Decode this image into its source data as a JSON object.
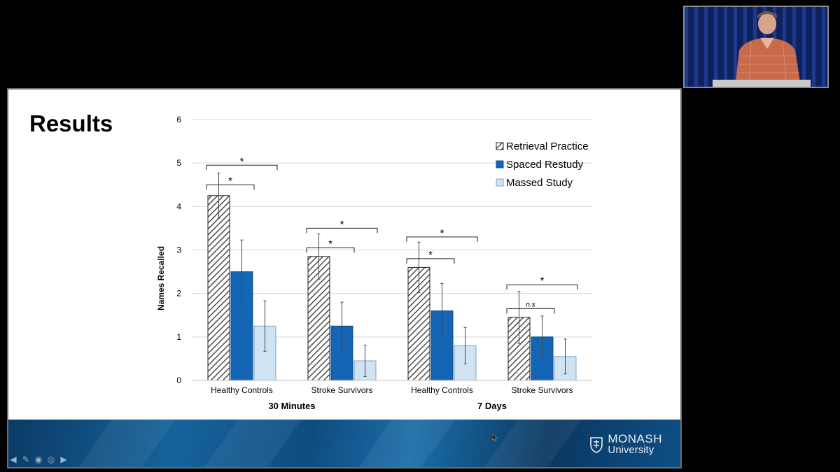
{
  "slide": {
    "title": "Results",
    "logo": {
      "line1": "MONASH",
      "line2": "University"
    }
  },
  "colors": {
    "retrieval_hatch": "#333333",
    "spaced": "#1565b5",
    "massed": "#cfe3f2",
    "grid": "#d9d9d9",
    "footer": "#0e4c80"
  },
  "chart_data": {
    "type": "bar",
    "ylabel": "Names Recalled",
    "ylim": [
      0,
      6
    ],
    "yticks": [
      0,
      1,
      2,
      3,
      4,
      5,
      6
    ],
    "grid": true,
    "legend_position": "top-right",
    "categories": [
      "Healthy Controls",
      "Stroke Survivors",
      "Healthy Controls",
      "Stroke Survivors"
    ],
    "groups": [
      {
        "label": "30 Minutes",
        "categories": [
          0,
          1
        ]
      },
      {
        "label": "7 Days",
        "categories": [
          2,
          3
        ]
      }
    ],
    "series": [
      {
        "name": "Retrieval Practice",
        "values": [
          4.25,
          2.85,
          2.6,
          1.45
        ],
        "errors": [
          0.52,
          0.52,
          0.58,
          0.6
        ]
      },
      {
        "name": "Spaced Restudy",
        "values": [
          2.5,
          1.25,
          1.6,
          1.0
        ],
        "errors": [
          0.73,
          0.55,
          0.63,
          0.48
        ]
      },
      {
        "name": "Massed Study",
        "values": [
          1.25,
          0.45,
          0.8,
          0.55
        ],
        "errors": [
          0.58,
          0.36,
          0.42,
          0.4
        ]
      }
    ],
    "annotations": [
      {
        "category": 0,
        "from_series": 0,
        "to_series": 2,
        "y": 4.95,
        "label": "*"
      },
      {
        "category": 0,
        "from_series": 0,
        "to_series": 1,
        "y": 4.5,
        "label": "*"
      },
      {
        "category": 1,
        "from_series": 0,
        "to_series": 2,
        "y": 3.5,
        "label": "*"
      },
      {
        "category": 1,
        "from_series": 0,
        "to_series": 1,
        "y": 3.05,
        "label": "*"
      },
      {
        "category": 2,
        "from_series": 0,
        "to_series": 2,
        "y": 3.3,
        "label": "*"
      },
      {
        "category": 2,
        "from_series": 0,
        "to_series": 1,
        "y": 2.8,
        "label": "*"
      },
      {
        "category": 3,
        "from_series": 0,
        "to_series": 2,
        "y": 2.2,
        "label": "*"
      },
      {
        "category": 3,
        "from_series": 0,
        "to_series": 1,
        "y": 1.65,
        "label": "n.s"
      }
    ]
  }
}
